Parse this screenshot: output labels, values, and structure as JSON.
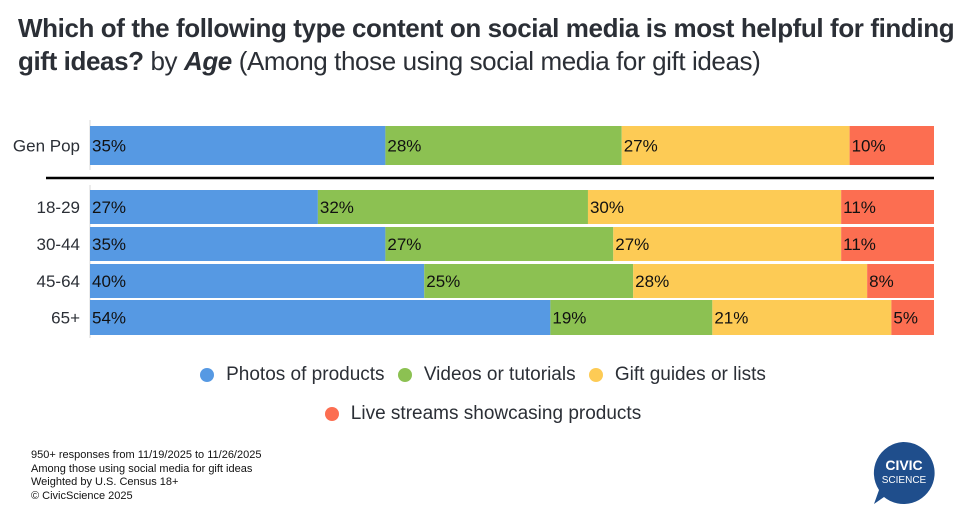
{
  "title": {
    "question": "Which of the following type content on social media is most helpful for finding gift ideas?",
    "by": "by",
    "dimension": "Age",
    "subtitle": "(Among those using social media for gift ideas)"
  },
  "chart_data": {
    "type": "bar",
    "orientation": "horizontal",
    "stacked": true,
    "normalized": true,
    "title": "Which of the following type content on social media is most helpful for finding gift ideas? by Age (Among those using social media for gift ideas)",
    "xlabel": "",
    "ylabel": "",
    "xlim": [
      0,
      100
    ],
    "grid": false,
    "legend_position": "bottom",
    "categories": [
      "Gen Pop",
      "18-29",
      "30-44",
      "45-64",
      "65+"
    ],
    "separator_after": "Gen Pop",
    "series": [
      {
        "name": "Photos of products",
        "color": "#5699e3",
        "values": [
          35,
          27,
          35,
          40,
          54
        ],
        "labels": [
          "35%",
          "27%",
          "35%",
          "40%",
          "54%"
        ]
      },
      {
        "name": "Videos or tutorials",
        "color": "#8cc152",
        "values": [
          28,
          32,
          27,
          25,
          19
        ],
        "labels": [
          "28%",
          "32%",
          "27%",
          "25%",
          "19%"
        ]
      },
      {
        "name": "Gift guides or lists",
        "color": "#fdcb55",
        "values": [
          27,
          30,
          27,
          28,
          21
        ],
        "labels": [
          "27%",
          "30%",
          "27%",
          "28%",
          "21%"
        ]
      },
      {
        "name": "Live streams showcasing products",
        "color": "#fc6e51",
        "values": [
          10,
          11,
          11,
          8,
          5
        ],
        "labels": [
          "10%",
          "11%",
          "11%",
          "8%",
          "5%"
        ]
      }
    ]
  },
  "legend": [
    {
      "label": "Photos of products",
      "color": "#5699e3"
    },
    {
      "label": "Videos or tutorials",
      "color": "#8cc152"
    },
    {
      "label": "Gift guides or lists",
      "color": "#fdcb55"
    },
    {
      "label": "Live streams showcasing products",
      "color": "#fc6e51"
    }
  ],
  "footer": {
    "line1": "950+ responses from 11/19/2025 to 11/26/2025",
    "line2": "Among those using social media for gift ideas",
    "line3": "Weighted by U.S. Census 18+",
    "line4": "© CivicScience 2025"
  },
  "logo": {
    "line1": "CIVIC",
    "line2": "SCIENCE",
    "color": "#1f4e8c"
  }
}
